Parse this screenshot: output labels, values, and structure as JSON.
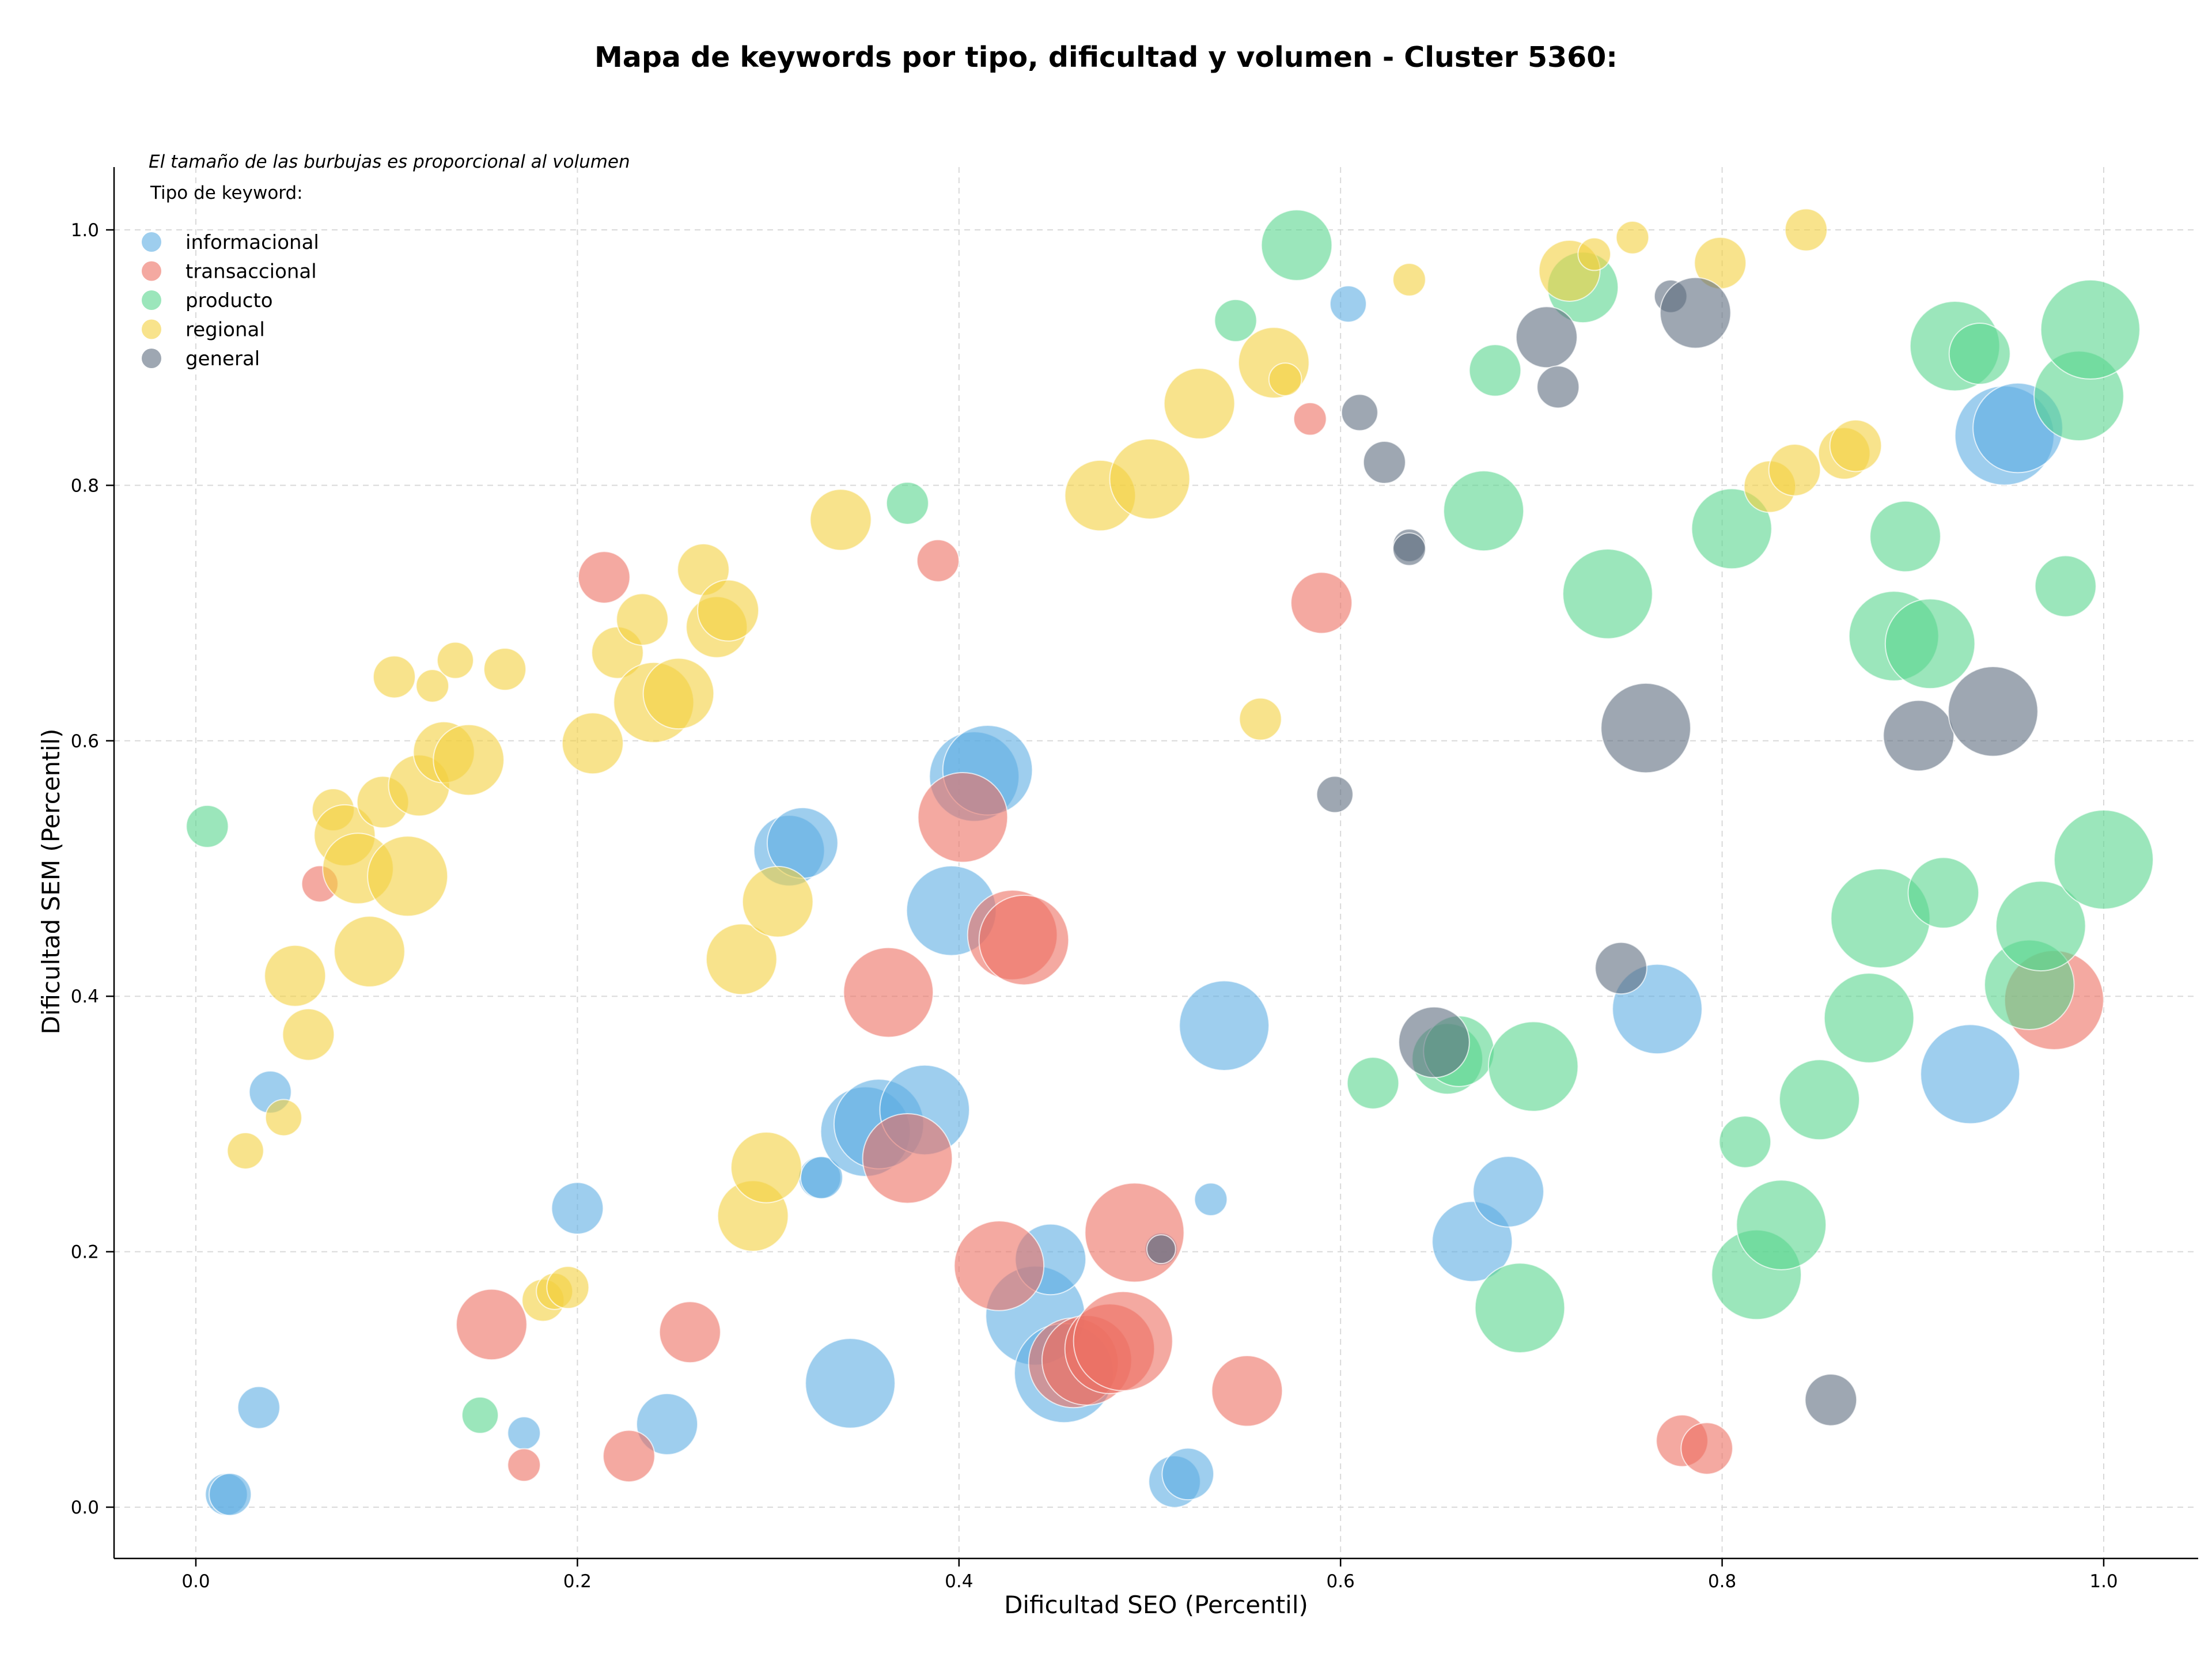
{
  "chart_data": {
    "type": "scatter",
    "title": "Mapa de keywords por tipo, dificultad y volumen - Cluster 5360:",
    "xlabel": "Dificultad SEO (Percentil)",
    "ylabel": "Dificultad SEM (Percentil)",
    "xlim": [
      -0.04,
      1.05
    ],
    "ylim": [
      -0.04,
      1.05
    ],
    "xticks": [
      0.0,
      0.2,
      0.4,
      0.6,
      0.8,
      1.0
    ],
    "yticks": [
      0.0,
      0.2,
      0.4,
      0.6,
      0.8,
      1.0
    ],
    "xtick_labels": [
      "0.0",
      "0.2",
      "0.4",
      "0.6",
      "0.8",
      "1.0"
    ],
    "ytick_labels": [
      "0.0",
      "0.2",
      "0.4",
      "0.6",
      "0.8",
      "1.0"
    ],
    "grid": true,
    "note": "El tamaño de las burbujas es proporcional al volumen",
    "legend": {
      "title": "Tipo de keyword:",
      "placement": "top-left"
    },
    "series": [
      {
        "name": "informacional",
        "color": "#5dade2",
        "points": [
          {
            "x": 0.016,
            "y": 0.01,
            "size": 1
          },
          {
            "x": 0.018,
            "y": 0.01,
            "size": 1
          },
          {
            "x": 0.033,
            "y": 0.078,
            "size": 1
          },
          {
            "x": 0.039,
            "y": 0.325,
            "size": 1
          },
          {
            "x": 0.172,
            "y": 0.058,
            "size": 0.5
          },
          {
            "x": 0.2,
            "y": 0.234,
            "size": 1.5
          },
          {
            "x": 0.247,
            "y": 0.065,
            "size": 2
          },
          {
            "x": 0.311,
            "y": 0.514,
            "size": 2.5
          },
          {
            "x": 0.318,
            "y": 0.52,
            "size": 2.5
          },
          {
            "x": 0.327,
            "y": 0.258,
            "size": 1
          },
          {
            "x": 0.328,
            "y": 0.258,
            "size": 1
          },
          {
            "x": 0.343,
            "y": 0.097,
            "size": 3.5
          },
          {
            "x": 0.351,
            "y": 0.294,
            "size": 3.5
          },
          {
            "x": 0.358,
            "y": 0.3,
            "size": 3.5
          },
          {
            "x": 0.382,
            "y": 0.311,
            "size": 3.5
          },
          {
            "x": 0.396,
            "y": 0.467,
            "size": 3.5
          },
          {
            "x": 0.408,
            "y": 0.572,
            "size": 3.5
          },
          {
            "x": 0.415,
            "y": 0.577,
            "size": 3.5
          },
          {
            "x": 0.44,
            "y": 0.15,
            "size": 4
          },
          {
            "x": 0.448,
            "y": 0.194,
            "size": 2.5
          },
          {
            "x": 0.455,
            "y": 0.105,
            "size": 4
          },
          {
            "x": 0.506,
            "y": 0.202,
            "size": 0.5
          },
          {
            "x": 0.513,
            "y": 0.02,
            "size": 1.5
          },
          {
            "x": 0.52,
            "y": 0.026,
            "size": 1.5
          },
          {
            "x": 0.532,
            "y": 0.241,
            "size": 0.5
          },
          {
            "x": 0.539,
            "y": 0.377,
            "size": 3.5
          },
          {
            "x": 0.604,
            "y": 0.942,
            "size": 0.7
          },
          {
            "x": 0.669,
            "y": 0.208,
            "size": 3
          },
          {
            "x": 0.688,
            "y": 0.247,
            "size": 2.5
          },
          {
            "x": 0.766,
            "y": 0.39,
            "size": 3.5
          },
          {
            "x": 0.93,
            "y": 0.339,
            "size": 4
          },
          {
            "x": 0.948,
            "y": 0.839,
            "size": 4
          },
          {
            "x": 0.955,
            "y": 0.845,
            "size": 3.5
          }
        ]
      },
      {
        "name": "transaccional",
        "color": "#ec7063",
        "points": [
          {
            "x": 0.065,
            "y": 0.488,
            "size": 0.7
          },
          {
            "x": 0.155,
            "y": 0.143,
            "size": 2.5
          },
          {
            "x": 0.172,
            "y": 0.033,
            "size": 0.5
          },
          {
            "x": 0.214,
            "y": 0.728,
            "size": 1.5
          },
          {
            "x": 0.227,
            "y": 0.04,
            "size": 1.5
          },
          {
            "x": 0.259,
            "y": 0.137,
            "size": 2
          },
          {
            "x": 0.363,
            "y": 0.403,
            "size": 3.5
          },
          {
            "x": 0.373,
            "y": 0.273,
            "size": 3.5
          },
          {
            "x": 0.389,
            "y": 0.741,
            "size": 1
          },
          {
            "x": 0.402,
            "y": 0.54,
            "size": 3.5
          },
          {
            "x": 0.421,
            "y": 0.189,
            "size": 3.5
          },
          {
            "x": 0.428,
            "y": 0.448,
            "size": 3.5
          },
          {
            "x": 0.434,
            "y": 0.444,
            "size": 3.5
          },
          {
            "x": 0.46,
            "y": 0.113,
            "size": 3.5
          },
          {
            "x": 0.467,
            "y": 0.115,
            "size": 3.5
          },
          {
            "x": 0.479,
            "y": 0.124,
            "size": 3.5
          },
          {
            "x": 0.486,
            "y": 0.13,
            "size": 4
          },
          {
            "x": 0.492,
            "y": 0.215,
            "size": 4
          },
          {
            "x": 0.551,
            "y": 0.091,
            "size": 2.5
          },
          {
            "x": 0.584,
            "y": 0.852,
            "size": 0.5
          },
          {
            "x": 0.59,
            "y": 0.708,
            "size": 2
          },
          {
            "x": 0.779,
            "y": 0.052,
            "size": 1.5
          },
          {
            "x": 0.792,
            "y": 0.046,
            "size": 1.5
          },
          {
            "x": 0.974,
            "y": 0.397,
            "size": 4
          }
        ]
      },
      {
        "name": "producto",
        "color": "#58d68d",
        "points": [
          {
            "x": 0.006,
            "y": 0.533,
            "size": 1
          },
          {
            "x": 0.149,
            "y": 0.072,
            "size": 0.7
          },
          {
            "x": 0.373,
            "y": 0.786,
            "size": 1
          },
          {
            "x": 0.545,
            "y": 0.929,
            "size": 1
          },
          {
            "x": 0.577,
            "y": 0.988,
            "size": 2.5
          },
          {
            "x": 0.617,
            "y": 0.332,
            "size": 1.5
          },
          {
            "x": 0.656,
            "y": 0.351,
            "size": 2.5
          },
          {
            "x": 0.662,
            "y": 0.357,
            "size": 2.5
          },
          {
            "x": 0.675,
            "y": 0.78,
            "size": 3
          },
          {
            "x": 0.681,
            "y": 0.89,
            "size": 1.5
          },
          {
            "x": 0.694,
            "y": 0.156,
            "size": 3.5
          },
          {
            "x": 0.701,
            "y": 0.345,
            "size": 3.5
          },
          {
            "x": 0.727,
            "y": 0.955,
            "size": 2.5
          },
          {
            "x": 0.74,
            "y": 0.715,
            "size": 3.5
          },
          {
            "x": 0.805,
            "y": 0.766,
            "size": 3
          },
          {
            "x": 0.812,
            "y": 0.286,
            "size": 1.5
          },
          {
            "x": 0.818,
            "y": 0.182,
            "size": 3.5
          },
          {
            "x": 0.831,
            "y": 0.221,
            "size": 3.5
          },
          {
            "x": 0.851,
            "y": 0.319,
            "size": 3
          },
          {
            "x": 0.877,
            "y": 0.383,
            "size": 3.5
          },
          {
            "x": 0.883,
            "y": 0.461,
            "size": 4
          },
          {
            "x": 0.89,
            "y": 0.682,
            "size": 3.5
          },
          {
            "x": 0.896,
            "y": 0.76,
            "size": 2.5
          },
          {
            "x": 0.909,
            "y": 0.676,
            "size": 3.5
          },
          {
            "x": 0.916,
            "y": 0.481,
            "size": 2.5
          },
          {
            "x": 0.922,
            "y": 0.909,
            "size": 3.5
          },
          {
            "x": 0.935,
            "y": 0.903,
            "size": 2
          },
          {
            "x": 0.961,
            "y": 0.409,
            "size": 3.5
          },
          {
            "x": 0.967,
            "y": 0.455,
            "size": 3.5
          },
          {
            "x": 0.98,
            "y": 0.721,
            "size": 2
          },
          {
            "x": 0.987,
            "y": 0.87,
            "size": 3.5
          },
          {
            "x": 0.993,
            "y": 0.922,
            "size": 4
          },
          {
            "x": 1.0,
            "y": 0.507,
            "size": 4
          }
        ]
      },
      {
        "name": "regional",
        "color": "#f4d03f",
        "points": [
          {
            "x": 0.026,
            "y": 0.279,
            "size": 0.7
          },
          {
            "x": 0.046,
            "y": 0.305,
            "size": 0.7
          },
          {
            "x": 0.052,
            "y": 0.416,
            "size": 2
          },
          {
            "x": 0.059,
            "y": 0.37,
            "size": 1.5
          },
          {
            "x": 0.072,
            "y": 0.546,
            "size": 1
          },
          {
            "x": 0.078,
            "y": 0.526,
            "size": 2
          },
          {
            "x": 0.085,
            "y": 0.5,
            "size": 2.5
          },
          {
            "x": 0.091,
            "y": 0.435,
            "size": 2.5
          },
          {
            "x": 0.098,
            "y": 0.552,
            "size": 1.5
          },
          {
            "x": 0.104,
            "y": 0.65,
            "size": 1
          },
          {
            "x": 0.111,
            "y": 0.494,
            "size": 3
          },
          {
            "x": 0.117,
            "y": 0.565,
            "size": 2
          },
          {
            "x": 0.124,
            "y": 0.643,
            "size": 0.5
          },
          {
            "x": 0.13,
            "y": 0.591,
            "size": 2
          },
          {
            "x": 0.136,
            "y": 0.663,
            "size": 0.7
          },
          {
            "x": 0.143,
            "y": 0.585,
            "size": 2.5
          },
          {
            "x": 0.162,
            "y": 0.656,
            "size": 1
          },
          {
            "x": 0.182,
            "y": 0.162,
            "size": 1
          },
          {
            "x": 0.188,
            "y": 0.169,
            "size": 0.7
          },
          {
            "x": 0.195,
            "y": 0.172,
            "size": 1
          },
          {
            "x": 0.208,
            "y": 0.598,
            "size": 2
          },
          {
            "x": 0.221,
            "y": 0.669,
            "size": 1.5
          },
          {
            "x": 0.234,
            "y": 0.695,
            "size": 1.5
          },
          {
            "x": 0.24,
            "y": 0.63,
            "size": 3
          },
          {
            "x": 0.253,
            "y": 0.637,
            "size": 2.5
          },
          {
            "x": 0.266,
            "y": 0.734,
            "size": 1.5
          },
          {
            "x": 0.273,
            "y": 0.689,
            "size": 2
          },
          {
            "x": 0.279,
            "y": 0.702,
            "size": 2
          },
          {
            "x": 0.286,
            "y": 0.429,
            "size": 2.5
          },
          {
            "x": 0.292,
            "y": 0.228,
            "size": 2.5
          },
          {
            "x": 0.299,
            "y": 0.266,
            "size": 2.5
          },
          {
            "x": 0.305,
            "y": 0.474,
            "size": 2.5
          },
          {
            "x": 0.338,
            "y": 0.773,
            "size": 2
          },
          {
            "x": 0.474,
            "y": 0.792,
            "size": 2.5
          },
          {
            "x": 0.5,
            "y": 0.805,
            "size": 3
          },
          {
            "x": 0.526,
            "y": 0.864,
            "size": 2.5
          },
          {
            "x": 0.558,
            "y": 0.617,
            "size": 1
          },
          {
            "x": 0.565,
            "y": 0.896,
            "size": 2.5
          },
          {
            "x": 0.571,
            "y": 0.883,
            "size": 0.5
          },
          {
            "x": 0.636,
            "y": 0.961,
            "size": 0.5
          },
          {
            "x": 0.72,
            "y": 0.968,
            "size": 2
          },
          {
            "x": 0.733,
            "y": 0.981,
            "size": 0.5
          },
          {
            "x": 0.753,
            "y": 0.994,
            "size": 0.5
          },
          {
            "x": 0.799,
            "y": 0.974,
            "size": 1.5
          },
          {
            "x": 0.825,
            "y": 0.799,
            "size": 1.5
          },
          {
            "x": 0.838,
            "y": 0.812,
            "size": 1.5
          },
          {
            "x": 0.844,
            "y": 1.0,
            "size": 1
          },
          {
            "x": 0.864,
            "y": 0.825,
            "size": 1.5
          },
          {
            "x": 0.87,
            "y": 0.831,
            "size": 1.5
          }
        ]
      },
      {
        "name": "general",
        "color": "#5d6d7e",
        "points": [
          {
            "x": 0.506,
            "y": 0.202,
            "size": 0.3
          },
          {
            "x": 0.597,
            "y": 0.558,
            "size": 0.7
          },
          {
            "x": 0.61,
            "y": 0.857,
            "size": 0.7
          },
          {
            "x": 0.623,
            "y": 0.818,
            "size": 1
          },
          {
            "x": 0.636,
            "y": 0.753,
            "size": 0.5
          },
          {
            "x": 0.636,
            "y": 0.75,
            "size": 0.5
          },
          {
            "x": 0.649,
            "y": 0.364,
            "size": 2.5
          },
          {
            "x": 0.708,
            "y": 0.916,
            "size": 2
          },
          {
            "x": 0.714,
            "y": 0.877,
            "size": 1
          },
          {
            "x": 0.747,
            "y": 0.422,
            "size": 1.5
          },
          {
            "x": 0.76,
            "y": 0.61,
            "size": 3.5
          },
          {
            "x": 0.773,
            "y": 0.948,
            "size": 0.5
          },
          {
            "x": 0.786,
            "y": 0.935,
            "size": 2.5
          },
          {
            "x": 0.857,
            "y": 0.084,
            "size": 1.5
          },
          {
            "x": 0.903,
            "y": 0.604,
            "size": 2.5
          },
          {
            "x": 0.942,
            "y": 0.623,
            "size": 3.5
          }
        ]
      }
    ]
  }
}
